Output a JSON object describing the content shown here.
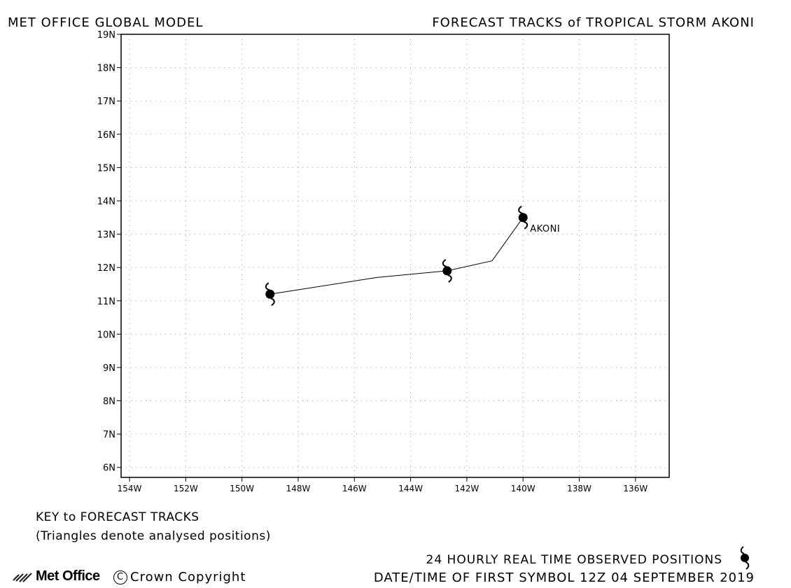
{
  "header": {
    "left": "MET OFFICE GLOBAL MODEL",
    "right": "FORECAST TRACKS of TROPICAL STORM AKONI"
  },
  "chart_data": {
    "type": "line",
    "xlim": [
      -154.3,
      -134.8
    ],
    "ylim": [
      5.7,
      19.0
    ],
    "x_ticks": [
      {
        "value": -154,
        "label": "154W"
      },
      {
        "value": -152,
        "label": "152W"
      },
      {
        "value": -150,
        "label": "150W"
      },
      {
        "value": -148,
        "label": "148W"
      },
      {
        "value": -146,
        "label": "146W"
      },
      {
        "value": -144,
        "label": "144W"
      },
      {
        "value": -142,
        "label": "142W"
      },
      {
        "value": -140,
        "label": "140W"
      },
      {
        "value": -138,
        "label": "138W"
      },
      {
        "value": -136,
        "label": "136W"
      }
    ],
    "y_ticks": [
      {
        "value": 6,
        "label": "6N"
      },
      {
        "value": 7,
        "label": "7N"
      },
      {
        "value": 8,
        "label": "8N"
      },
      {
        "value": 9,
        "label": "9N"
      },
      {
        "value": 10,
        "label": "10N"
      },
      {
        "value": 11,
        "label": "11N"
      },
      {
        "value": 12,
        "label": "12N"
      },
      {
        "value": 13,
        "label": "13N"
      },
      {
        "value": 14,
        "label": "14N"
      },
      {
        "value": 15,
        "label": "15N"
      },
      {
        "value": 16,
        "label": "16N"
      },
      {
        "value": 17,
        "label": "17N"
      },
      {
        "value": 18,
        "label": "18N"
      },
      {
        "value": 19,
        "label": "19N"
      }
    ],
    "grid": true,
    "series": [
      {
        "name": "AKONI",
        "track": [
          {
            "lon": -140.0,
            "lat": 13.5
          },
          {
            "lon": -141.1,
            "lat": 12.2
          },
          {
            "lon": -142.7,
            "lat": 11.9
          },
          {
            "lon": -145.2,
            "lat": 11.7
          },
          {
            "lon": -149.0,
            "lat": 11.2
          }
        ],
        "symbols": [
          {
            "lon": -140.0,
            "lat": 13.5
          },
          {
            "lon": -142.7,
            "lat": 11.9
          },
          {
            "lon": -149.0,
            "lat": 11.2
          }
        ],
        "label": {
          "text": "AKONI",
          "lon": -140.0,
          "lat": 13.5
        }
      }
    ]
  },
  "key": {
    "title": "KEY to FORECAST TRACKS",
    "note": "(Triangles denote analysed positions)"
  },
  "observed_label": "24 HOURLY REAL TIME OBSERVED POSITIONS",
  "first_symbol": "DATE/TIME OF FIRST SYMBOL 12Z 04 SEPTEMBER 2019",
  "logo_text": "Met Office",
  "copyright": "Crown Copyright",
  "copyright_symbol": "C"
}
